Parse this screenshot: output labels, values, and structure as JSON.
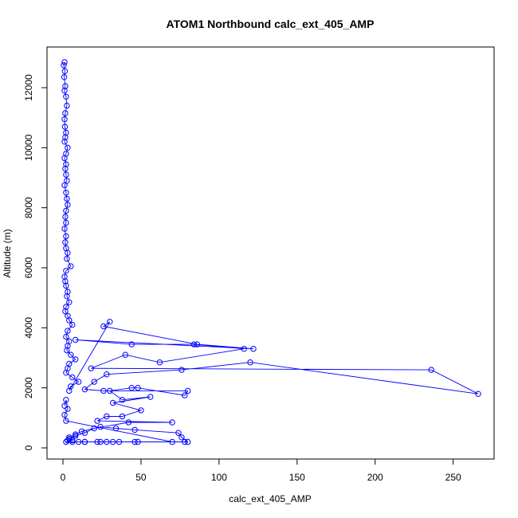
{
  "chart_data": {
    "type": "scatter",
    "title": "ATOM1 Northbound calc_ext_405_AMP",
    "xlabel": "calc_ext_405_AMP",
    "ylabel": "Altitude (m)",
    "xlim": [
      0,
      266
    ],
    "ylim": [
      0,
      12850
    ],
    "x_ticks": [
      0,
      50,
      100,
      150,
      200,
      250
    ],
    "x_tick_labels": [
      "0",
      "50",
      "100",
      "150",
      "200",
      "250"
    ],
    "y_ticks": [
      0,
      2000,
      4000,
      6000,
      8000,
      10000,
      12000
    ],
    "y_tick_labels": [
      "0",
      "2000",
      "4000",
      "6000",
      "8000",
      "10000",
      "12000"
    ],
    "grid": false,
    "series": [
      {
        "color": "#0000ff",
        "marker": "open-circle",
        "connected": true,
        "x": [
          1,
          0.5,
          1.2,
          0.8,
          1.5,
          1,
          2,
          2.5,
          1.5,
          1,
          1.2,
          2,
          1.5,
          1,
          3,
          2,
          1,
          2,
          1.5,
          2,
          2.5,
          1,
          2,
          2.5,
          3,
          2,
          1.5,
          2,
          1,
          2,
          1.5,
          2,
          3,
          2.5,
          5,
          2,
          1,
          1.5,
          2,
          3,
          2.5,
          4,
          2,
          1.5,
          3,
          4,
          6,
          3,
          2,
          4,
          3,
          2.5,
          5,
          8,
          4,
          3,
          2,
          6,
          10,
          5,
          4,
          30,
          26,
          86,
          122,
          8,
          44,
          84,
          116,
          62,
          40,
          18,
          236,
          266,
          120,
          76,
          28,
          20,
          14,
          26,
          80,
          78,
          48,
          44,
          30,
          38,
          56,
          32,
          50,
          38,
          28,
          22,
          70,
          42,
          20,
          14,
          8,
          4,
          6,
          2,
          10,
          14,
          24,
          32,
          46,
          78,
          80,
          76,
          74,
          46,
          34,
          24,
          12,
          8,
          4,
          3,
          6,
          14,
          22,
          28,
          36,
          48,
          70,
          2,
          1,
          3,
          2,
          1
        ],
        "y": [
          12850,
          12750,
          12550,
          12350,
          12050,
          11900,
          11700,
          11400,
          11150,
          10950,
          10700,
          10500,
          10350,
          10200,
          10000,
          9800,
          9650,
          9450,
          9300,
          9100,
          8900,
          8750,
          8500,
          8300,
          8100,
          7900,
          7700,
          7500,
          7300,
          7050,
          6850,
          6650,
          6500,
          6300,
          6050,
          5900,
          5700,
          5550,
          5400,
          5200,
          5050,
          4850,
          4700,
          4550,
          4400,
          4250,
          4100,
          3900,
          3700,
          3550,
          3400,
          3250,
          3100,
          2950,
          2800,
          2650,
          2500,
          2350,
          2200,
          2050,
          1900,
          4200,
          4050,
          3450,
          3300,
          3600,
          3450,
          3450,
          3300,
          2850,
          3100,
          2650,
          2600,
          1800,
          2850,
          2600,
          2450,
          2200,
          1950,
          1900,
          1900,
          1750,
          2000,
          2000,
          1900,
          1600,
          1700,
          1500,
          1250,
          1050,
          1050,
          900,
          850,
          850,
          650,
          500,
          400,
          300,
          250,
          200,
          200,
          200,
          200,
          200,
          200,
          200,
          200,
          350,
          500,
          600,
          650,
          700,
          550,
          450,
          350,
          250,
          200,
          200,
          200,
          200,
          200,
          200,
          200,
          900,
          1100,
          1300,
          1600,
          1400
        ]
      }
    ]
  }
}
